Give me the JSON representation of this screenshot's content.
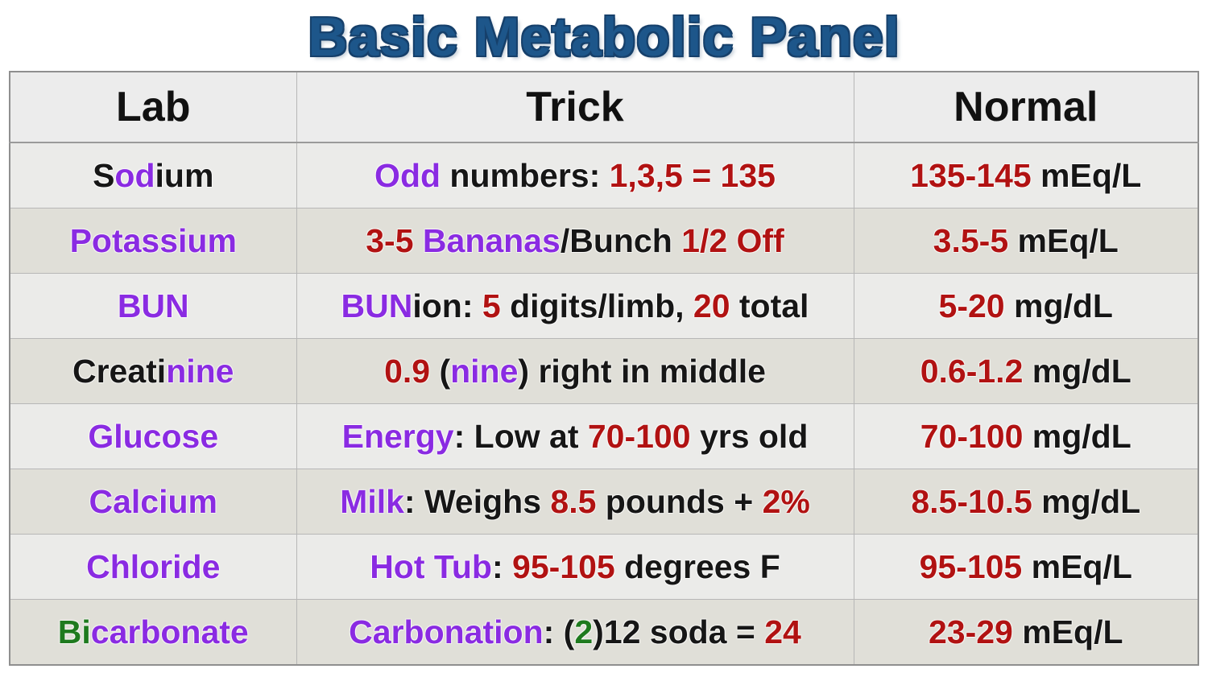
{
  "title": "Basic Metabolic Panel",
  "palette": {
    "black": "#161616",
    "purple": "#8a2be2",
    "red": "#b11212",
    "green": "#1e7a1e",
    "title_blue": "#1d568a",
    "header_bg": "#ececec",
    "row_light_bg": "#ebebe9",
    "row_dark_bg": "#e0dfd8"
  },
  "table": {
    "columns": [
      "Lab",
      "Trick",
      "Normal"
    ],
    "rows": [
      {
        "lab": [
          {
            "t": "S",
            "c": "black"
          },
          {
            "t": "od",
            "c": "purple"
          },
          {
            "t": "ium",
            "c": "black"
          }
        ],
        "trick": [
          {
            "t": "Odd",
            "c": "purple"
          },
          {
            "t": " numbers: ",
            "c": "black"
          },
          {
            "t": "1,3,5 = 135",
            "c": "red"
          }
        ],
        "normal": [
          {
            "t": "135-145",
            "c": "red"
          },
          {
            "t": " mEq/L",
            "c": "black"
          }
        ]
      },
      {
        "lab": [
          {
            "t": "Potassium",
            "c": "purple"
          }
        ],
        "trick": [
          {
            "t": "3-5",
            "c": "red"
          },
          {
            "t": " Bananas",
            "c": "purple"
          },
          {
            "t": "/Bunch ",
            "c": "black"
          },
          {
            "t": "1/2 Off",
            "c": "red"
          }
        ],
        "normal": [
          {
            "t": "3.5-5",
            "c": "red"
          },
          {
            "t": " mEq/L",
            "c": "black"
          }
        ]
      },
      {
        "lab": [
          {
            "t": "BUN",
            "c": "purple"
          }
        ],
        "trick": [
          {
            "t": "BUN",
            "c": "purple"
          },
          {
            "t": "ion: ",
            "c": "black"
          },
          {
            "t": "5",
            "c": "red"
          },
          {
            "t": " digits/limb, ",
            "c": "black"
          },
          {
            "t": "20",
            "c": "red"
          },
          {
            "t": " total",
            "c": "black"
          }
        ],
        "normal": [
          {
            "t": "5-20",
            "c": "red"
          },
          {
            "t": " mg/dL",
            "c": "black"
          }
        ]
      },
      {
        "lab": [
          {
            "t": "Creati",
            "c": "black"
          },
          {
            "t": "nine",
            "c": "purple"
          }
        ],
        "trick": [
          {
            "t": "0.9",
            "c": "red"
          },
          {
            "t": " (",
            "c": "black"
          },
          {
            "t": "nine",
            "c": "purple"
          },
          {
            "t": ") right in middle",
            "c": "black"
          }
        ],
        "normal": [
          {
            "t": "0.6-1.2",
            "c": "red"
          },
          {
            "t": " mg/dL",
            "c": "black"
          }
        ]
      },
      {
        "lab": [
          {
            "t": "Glucose",
            "c": "purple"
          }
        ],
        "trick": [
          {
            "t": "Energy",
            "c": "purple"
          },
          {
            "t": ": Low at ",
            "c": "black"
          },
          {
            "t": "70-100",
            "c": "red"
          },
          {
            "t": " yrs old",
            "c": "black"
          }
        ],
        "normal": [
          {
            "t": "70-100",
            "c": "red"
          },
          {
            "t": " mg/dL",
            "c": "black"
          }
        ]
      },
      {
        "lab": [
          {
            "t": "Calcium",
            "c": "purple"
          }
        ],
        "trick": [
          {
            "t": "Milk",
            "c": "purple"
          },
          {
            "t": ": Weighs ",
            "c": "black"
          },
          {
            "t": "8.5",
            "c": "red"
          },
          {
            "t": " pounds + ",
            "c": "black"
          },
          {
            "t": "2%",
            "c": "red"
          }
        ],
        "normal": [
          {
            "t": "8.5-10.5",
            "c": "red"
          },
          {
            "t": " mg/dL",
            "c": "black"
          }
        ]
      },
      {
        "lab": [
          {
            "t": "Chloride",
            "c": "purple"
          }
        ],
        "trick": [
          {
            "t": "Hot Tub",
            "c": "purple"
          },
          {
            "t": ": ",
            "c": "black"
          },
          {
            "t": "95-105",
            "c": "red"
          },
          {
            "t": " degrees F",
            "c": "black"
          }
        ],
        "normal": [
          {
            "t": "95-105",
            "c": "red"
          },
          {
            "t": " mEq/L",
            "c": "black"
          }
        ]
      },
      {
        "lab": [
          {
            "t": "Bi",
            "c": "green"
          },
          {
            "t": "carbonate",
            "c": "purple"
          }
        ],
        "trick": [
          {
            "t": "Carbonation",
            "c": "purple"
          },
          {
            "t": ": (",
            "c": "black"
          },
          {
            "t": "2",
            "c": "green"
          },
          {
            "t": ")12 soda = ",
            "c": "black"
          },
          {
            "t": "24",
            "c": "red"
          }
        ],
        "normal": [
          {
            "t": "23-29",
            "c": "red"
          },
          {
            "t": " mEq/L",
            "c": "black"
          }
        ]
      }
    ]
  },
  "chart_data": {
    "type": "table",
    "title": "Basic Metabolic Panel",
    "columns": [
      "Lab",
      "Trick",
      "Normal"
    ],
    "rows": [
      [
        "Sodium",
        "Odd numbers: 1,3,5 = 135",
        "135-145 mEq/L"
      ],
      [
        "Potassium",
        "3-5 Bananas/Bunch 1/2 Off",
        "3.5-5 mEq/L"
      ],
      [
        "BUN",
        "BUNion: 5 digits/limb, 20 total",
        "5-20 mg/dL"
      ],
      [
        "Creatinine",
        "0.9 (nine) right in middle",
        "0.6-1.2 mg/dL"
      ],
      [
        "Glucose",
        "Energy: Low at 70-100 yrs old",
        "70-100 mg/dL"
      ],
      [
        "Calcium",
        "Milk: Weighs 8.5 pounds + 2%",
        "8.5-10.5 mg/dL"
      ],
      [
        "Chloride",
        "Hot Tub: 95-105 degrees F",
        "95-105 mEq/L"
      ],
      [
        "Bicarbonate",
        "Carbonation: (2)12 soda = 24",
        "23-29 mEq/L"
      ]
    ]
  }
}
